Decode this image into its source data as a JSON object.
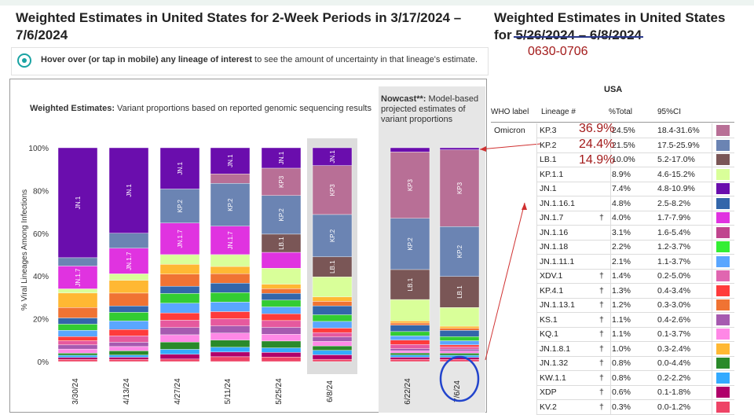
{
  "page": {
    "title_left": "Weighted Estimates in United States for 2-Week Periods in 3/17/2024 – 7/6/2024",
    "title_right_line1": "Weighted Estimates in United States",
    "title_right_prefix": "for ",
    "title_right_struck": "5/26/2024 – 6/8/2024",
    "handwritten_dates": "0630-0706",
    "hint_bold": "Hover over (or tap in mobile) any lineage of interest",
    "hint_rest": " to see the amount of uncertainty in that lineage's estimate.",
    "weighted_title_bold": "Weighted Estimates:",
    "weighted_title_rest": " Variant proportions based on reported genomic sequencing results",
    "nowcast_title_bold": "Nowcast**:",
    "nowcast_title_rest": " Model-based projected estimates of variant proportions",
    "annotations": [
      "36.9%",
      "24.4%",
      "14.9%"
    ],
    "colors": {
      "annotation": "#a31a1a",
      "nowcast_bg": "#e6e6e6",
      "highlight_circle": "#2244cc",
      "arrow": "#d03030"
    }
  },
  "chart_data": {
    "type": "bar",
    "stacked": true,
    "ylabel": "% Viral Lineages Among Infections",
    "yticks": [
      "0%",
      "20%",
      "40%",
      "60%",
      "80%",
      "100%"
    ],
    "ylim": [
      0,
      100
    ],
    "grid": false,
    "categories": [
      "3/30/24",
      "4/13/24",
      "4/27/24",
      "5/11/24",
      "5/25/24",
      "6/8/24",
      "6/22/24",
      "7/6/24"
    ],
    "nowcast_categories": [
      "6/22/24",
      "7/6/24"
    ],
    "highlighted_category": "6/8/24",
    "series": [
      {
        "name": "JN.1",
        "color": "#6a0dad",
        "values": [
          53,
          40,
          17,
          11,
          9,
          8,
          2,
          1
        ]
      },
      {
        "name": "KP.3",
        "color": "#b86f96",
        "values": [
          0,
          0,
          0,
          4,
          12,
          22,
          31,
          37
        ]
      },
      {
        "name": "KP.2",
        "color": "#6b84b3",
        "values": [
          4,
          7,
          14,
          18,
          17,
          19,
          24,
          24
        ]
      },
      {
        "name": "LB.1",
        "color": "#7a5656",
        "values": [
          0,
          0,
          0,
          0,
          8,
          9,
          14,
          15
        ]
      },
      {
        "name": "JN.1.7",
        "color": "#e033e0",
        "values": [
          11,
          12,
          13,
          12,
          7,
          0,
          0,
          0
        ]
      },
      {
        "name": "KP.1.1",
        "color": "#d9ff99",
        "values": [
          2,
          3,
          4,
          5,
          7,
          9,
          10,
          9
        ]
      },
      {
        "name": "XDV.1",
        "color": "#ffb833",
        "values": [
          7,
          6,
          4,
          3,
          2,
          2,
          1,
          1
        ]
      },
      {
        "name": "JN.1.16",
        "color": "#f07333",
        "values": [
          5,
          6,
          5,
          4,
          2,
          2,
          1,
          1
        ]
      },
      {
        "name": "JN.1.16.1",
        "color": "#3366aa",
        "values": [
          3,
          3,
          3,
          4,
          3,
          4,
          3,
          3
        ]
      },
      {
        "name": "JN.1.18",
        "color": "#33cc33",
        "values": [
          3,
          4,
          4,
          4,
          3,
          3,
          2,
          2
        ]
      },
      {
        "name": "JN.1.11.1",
        "color": "#5aa6ff",
        "values": [
          3,
          4,
          4,
          4,
          3,
          3,
          2,
          2
        ]
      },
      {
        "name": "KP.4.1",
        "color": "#ff3b3b",
        "values": [
          2,
          3,
          3,
          3,
          3,
          2,
          2,
          1
        ]
      },
      {
        "name": "JN.1.13.1",
        "color": "#e6599e",
        "values": [
          2,
          3,
          3,
          3,
          3,
          2,
          2,
          1
        ]
      },
      {
        "name": "KS.1",
        "color": "#a65ab0",
        "values": [
          2,
          2,
          3,
          3,
          3,
          2,
          1,
          1
        ]
      },
      {
        "name": "KQ.1",
        "color": "#ff88e6",
        "values": [
          2,
          2,
          3,
          3,
          3,
          2,
          1,
          1
        ]
      },
      {
        "name": "JN.1.8.1",
        "color": "#2a8a2a",
        "values": [
          1,
          2,
          3,
          3,
          3,
          2,
          1,
          1
        ]
      },
      {
        "name": "KW.1.1",
        "color": "#33aaff",
        "values": [
          1,
          1,
          2,
          2,
          2,
          2,
          1,
          1
        ]
      },
      {
        "name": "XDP",
        "color": "#b0006a",
        "values": [
          1,
          1,
          2,
          2,
          2,
          2,
          1,
          1
        ]
      },
      {
        "name": "KV.2",
        "color": "#ee4466",
        "values": [
          1,
          1,
          1,
          2,
          2,
          1,
          1,
          1
        ]
      }
    ],
    "bar_labels": [
      [
        [
          "JN.1",
          "JN.1"
        ],
        [
          "JN.1.7",
          "JN.1.7"
        ]
      ],
      [
        [
          "JN.1",
          "JN.1"
        ],
        [
          "JN.1.7",
          "JN.1.7"
        ]
      ],
      [
        [
          "JN.1",
          "JN.1"
        ],
        [
          "KP.2",
          "KP.2"
        ],
        [
          "JN.1.7",
          "JN.1.7"
        ]
      ],
      [
        [
          "JN.1",
          "JN.1"
        ],
        [
          "KP.2",
          "KP.2"
        ],
        [
          "JN.1.7",
          "JN.1.7"
        ]
      ],
      [
        [
          "JN.1",
          "JN.1"
        ],
        [
          "KP.3",
          "KP3"
        ],
        [
          "KP.2",
          "KP.2"
        ],
        [
          "LB.1",
          "LB.1"
        ]
      ],
      [
        [
          "JN.1",
          "JN.1"
        ],
        [
          "KP.3",
          "KP3"
        ],
        [
          "KP.2",
          "KP.2"
        ],
        [
          "LB.1",
          "LB.1"
        ]
      ],
      [
        [
          "KP.3",
          "KP3"
        ],
        [
          "KP.2",
          "KP.2"
        ],
        [
          "LB.1",
          "LB.1"
        ]
      ],
      [
        [
          "KP.3",
          "KP3"
        ],
        [
          "KP.2",
          "KP.2"
        ],
        [
          "LB.1",
          "LB.1"
        ]
      ]
    ]
  },
  "table": {
    "region": "USA",
    "headers": {
      "who": "WHO label",
      "lineage": "Lineage #",
      "total": "%Total",
      "ci": "95%CI"
    },
    "who_label": "Omicron",
    "rows": [
      {
        "lineage": "KP.3",
        "dagger": "",
        "total": "24.5%",
        "ci": "18.4-31.6%",
        "color": "#b86f96"
      },
      {
        "lineage": "KP.2",
        "dagger": "",
        "total": "21.5%",
        "ci": "17.5-25.9%",
        "color": "#6b84b3"
      },
      {
        "lineage": "LB.1",
        "dagger": "",
        "total": "10.0%",
        "ci": "5.2-17.0%",
        "color": "#7a5656"
      },
      {
        "lineage": "KP.1.1",
        "dagger": "",
        "total": "8.9%",
        "ci": "4.6-15.2%",
        "color": "#d9ff99"
      },
      {
        "lineage": "JN.1",
        "dagger": "",
        "total": "7.4%",
        "ci": "4.8-10.9%",
        "color": "#6a0dad"
      },
      {
        "lineage": "JN.1.16.1",
        "dagger": "",
        "total": "4.8%",
        "ci": "2.5-8.2%",
        "color": "#3366aa"
      },
      {
        "lineage": "JN.1.7",
        "dagger": "†",
        "total": "4.0%",
        "ci": "1.7-7.9%",
        "color": "#e033e0"
      },
      {
        "lineage": "JN.1.16",
        "dagger": "",
        "total": "3.1%",
        "ci": "1.6-5.4%",
        "color": "#c0458e"
      },
      {
        "lineage": "JN.1.18",
        "dagger": "",
        "total": "2.2%",
        "ci": "1.2-3.7%",
        "color": "#33ee33"
      },
      {
        "lineage": "JN.1.11.1",
        "dagger": "",
        "total": "2.1%",
        "ci": "1.1-3.7%",
        "color": "#5aa6ff"
      },
      {
        "lineage": "XDV.1",
        "dagger": "†",
        "total": "1.4%",
        "ci": "0.2-5.0%",
        "color": "#e066b0"
      },
      {
        "lineage": "KP.4.1",
        "dagger": "†",
        "total": "1.3%",
        "ci": "0.4-3.4%",
        "color": "#ff3b3b"
      },
      {
        "lineage": "JN.1.13.1",
        "dagger": "†",
        "total": "1.2%",
        "ci": "0.3-3.0%",
        "color": "#f07333"
      },
      {
        "lineage": "KS.1",
        "dagger": "†",
        "total": "1.1%",
        "ci": "0.4-2.6%",
        "color": "#a65ab0"
      },
      {
        "lineage": "KQ.1",
        "dagger": "†",
        "total": "1.1%",
        "ci": "0.1-3.7%",
        "color": "#ff88e6"
      },
      {
        "lineage": "JN.1.8.1",
        "dagger": "†",
        "total": "1.0%",
        "ci": "0.3-2.4%",
        "color": "#ffb833"
      },
      {
        "lineage": "JN.1.32",
        "dagger": "†",
        "total": "0.8%",
        "ci": "0.0-4.4%",
        "color": "#2a8a2a"
      },
      {
        "lineage": "KW.1.1",
        "dagger": "†",
        "total": "0.8%",
        "ci": "0.2-2.2%",
        "color": "#33aaff"
      },
      {
        "lineage": "XDP",
        "dagger": "†",
        "total": "0.6%",
        "ci": "0.1-1.8%",
        "color": "#b0006a"
      },
      {
        "lineage": "KV.2",
        "dagger": "†",
        "total": "0.3%",
        "ci": "0.0-1.2%",
        "color": "#ee4466"
      }
    ]
  }
}
